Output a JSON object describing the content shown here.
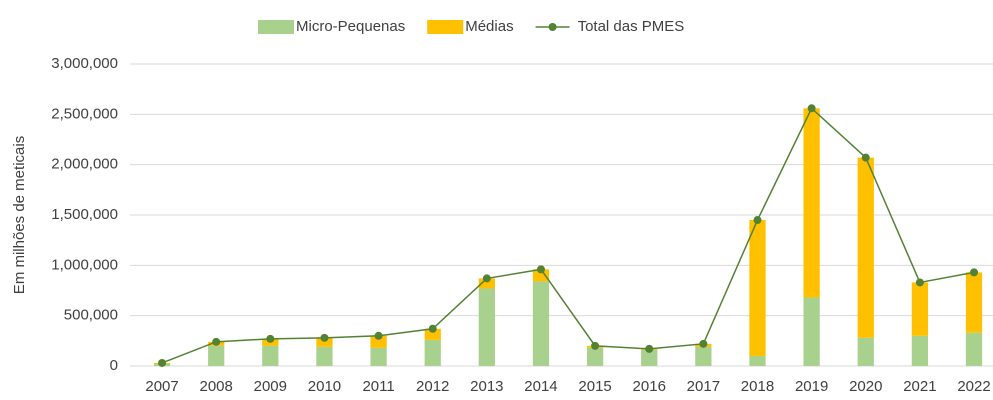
{
  "chart_data": {
    "type": "bar",
    "stacked": true,
    "y_axis_label": "Em milhões de meticais",
    "categories": [
      "2007",
      "2008",
      "2009",
      "2010",
      "2011",
      "2012",
      "2013",
      "2014",
      "2015",
      "2016",
      "2017",
      "2018",
      "2019",
      "2020",
      "2021",
      "2022"
    ],
    "series": [
      {
        "name": "Micro-Pequenas",
        "type": "bar",
        "color": "#a9d18e",
        "values": [
          20000,
          200000,
          200000,
          190000,
          180000,
          260000,
          770000,
          840000,
          180000,
          160000,
          190000,
          100000,
          680000,
          280000,
          300000,
          330000
        ]
      },
      {
        "name": "Médias",
        "type": "bar",
        "color": "#ffc000",
        "values": [
          10000,
          40000,
          70000,
          90000,
          120000,
          110000,
          100000,
          120000,
          20000,
          10000,
          30000,
          1350000,
          1880000,
          1790000,
          530000,
          600000
        ]
      },
      {
        "name": "Total das PMES",
        "type": "line",
        "color": "#548235",
        "values": [
          30000,
          240000,
          270000,
          280000,
          300000,
          370000,
          870000,
          960000,
          200000,
          170000,
          220000,
          1450000,
          2560000,
          2070000,
          830000,
          930000
        ]
      }
    ],
    "ylim": [
      0,
      3000000
    ],
    "yticks": [
      0,
      {
        "value": 500000,
        "label": "500,000"
      },
      {
        "value": 1000000,
        "label": "1,000,000"
      },
      {
        "value": 1500000,
        "label": "1,500,000"
      },
      {
        "value": 2000000,
        "label": "2,000,000"
      },
      {
        "value": 2500000,
        "label": "2,500,000"
      },
      {
        "value": 3000000,
        "label": "3,000,000"
      }
    ],
    "grid": true,
    "legend": "top"
  }
}
